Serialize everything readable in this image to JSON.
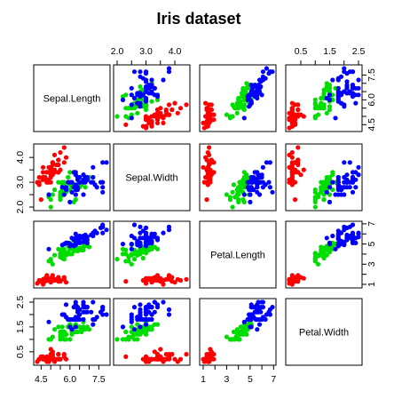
{
  "chart_data": {
    "type": "scatter",
    "title": "Iris dataset",
    "variables": [
      "Sepal.Length",
      "Sepal.Width",
      "Petal.Length",
      "Petal.Width"
    ],
    "ranges": {
      "Sepal.Length": [
        4.3,
        7.9
      ],
      "Sepal.Width": [
        2.0,
        4.4
      ],
      "Petal.Length": [
        1.0,
        6.9
      ],
      "Petal.Width": [
        0.1,
        2.5
      ]
    },
    "tick_labels": {
      "Sepal.Length": [
        "4.5",
        "6.0",
        "7.5"
      ],
      "Sepal.Width": [
        "2.0",
        "3.0",
        "4.0"
      ],
      "Petal.Length": [
        "1",
        "3",
        "5",
        "7"
      ],
      "Petal.Width": [
        "0.5",
        "1.5",
        "2.5"
      ]
    },
    "tick_values": {
      "Sepal.Length": [
        4.5,
        5.0,
        5.5,
        6.0,
        6.5,
        7.0,
        7.5
      ],
      "Sepal.Width": [
        2.0,
        2.5,
        3.0,
        3.5,
        4.0
      ],
      "Petal.Length": [
        1,
        2,
        3,
        4,
        5,
        6,
        7
      ],
      "Petal.Width": [
        0.5,
        1.0,
        1.5,
        2.0,
        2.5
      ]
    },
    "grid": false,
    "series": [
      {
        "color": "#ff0000",
        "points": [
          [
            5.1,
            3.5,
            1.4,
            0.2
          ],
          [
            4.9,
            3.0,
            1.4,
            0.2
          ],
          [
            4.7,
            3.2,
            1.3,
            0.2
          ],
          [
            4.6,
            3.1,
            1.5,
            0.2
          ],
          [
            5.0,
            3.6,
            1.4,
            0.2
          ],
          [
            5.4,
            3.9,
            1.7,
            0.4
          ],
          [
            4.6,
            3.4,
            1.4,
            0.3
          ],
          [
            5.0,
            3.4,
            1.5,
            0.2
          ],
          [
            4.4,
            2.9,
            1.4,
            0.2
          ],
          [
            4.9,
            3.1,
            1.5,
            0.1
          ],
          [
            5.4,
            3.7,
            1.5,
            0.2
          ],
          [
            4.8,
            3.4,
            1.6,
            0.2
          ],
          [
            4.8,
            3.0,
            1.4,
            0.1
          ],
          [
            4.3,
            3.0,
            1.1,
            0.1
          ],
          [
            5.8,
            4.0,
            1.2,
            0.2
          ],
          [
            5.7,
            4.4,
            1.5,
            0.4
          ],
          [
            5.4,
            3.9,
            1.3,
            0.4
          ],
          [
            5.1,
            3.5,
            1.4,
            0.3
          ],
          [
            5.7,
            3.8,
            1.7,
            0.3
          ],
          [
            5.1,
            3.8,
            1.5,
            0.3
          ],
          [
            5.4,
            3.4,
            1.7,
            0.2
          ],
          [
            5.1,
            3.7,
            1.5,
            0.4
          ],
          [
            4.6,
            3.6,
            1.0,
            0.2
          ],
          [
            5.1,
            3.3,
            1.7,
            0.5
          ],
          [
            4.8,
            3.4,
            1.9,
            0.2
          ],
          [
            5.0,
            3.0,
            1.6,
            0.2
          ],
          [
            5.0,
            3.4,
            1.6,
            0.4
          ],
          [
            5.2,
            3.5,
            1.5,
            0.2
          ],
          [
            5.2,
            3.4,
            1.4,
            0.2
          ],
          [
            4.7,
            3.2,
            1.6,
            0.2
          ],
          [
            4.8,
            3.1,
            1.6,
            0.2
          ],
          [
            5.4,
            3.4,
            1.5,
            0.4
          ],
          [
            5.2,
            4.1,
            1.5,
            0.1
          ],
          [
            5.5,
            4.2,
            1.4,
            0.2
          ],
          [
            4.9,
            3.1,
            1.5,
            0.2
          ],
          [
            5.0,
            3.2,
            1.2,
            0.2
          ],
          [
            5.5,
            3.5,
            1.3,
            0.2
          ],
          [
            4.9,
            3.6,
            1.4,
            0.1
          ],
          [
            4.4,
            3.0,
            1.3,
            0.2
          ],
          [
            5.1,
            3.4,
            1.5,
            0.2
          ],
          [
            5.0,
            3.5,
            1.3,
            0.3
          ],
          [
            4.5,
            2.3,
            1.3,
            0.3
          ],
          [
            4.4,
            3.2,
            1.3,
            0.2
          ],
          [
            5.0,
            3.5,
            1.6,
            0.6
          ],
          [
            5.1,
            3.8,
            1.9,
            0.4
          ],
          [
            4.8,
            3.0,
            1.4,
            0.3
          ],
          [
            5.1,
            3.8,
            1.6,
            0.2
          ],
          [
            4.6,
            3.2,
            1.4,
            0.2
          ],
          [
            5.3,
            3.7,
            1.5,
            0.2
          ],
          [
            5.0,
            3.3,
            1.4,
            0.2
          ]
        ]
      },
      {
        "color": "#00dd00",
        "points": [
          [
            7.0,
            3.2,
            4.7,
            1.4
          ],
          [
            6.4,
            3.2,
            4.5,
            1.5
          ],
          [
            6.9,
            3.1,
            4.9,
            1.5
          ],
          [
            5.5,
            2.3,
            4.0,
            1.3
          ],
          [
            6.5,
            2.8,
            4.6,
            1.5
          ],
          [
            5.7,
            2.8,
            4.5,
            1.3
          ],
          [
            6.3,
            3.3,
            4.7,
            1.6
          ],
          [
            4.9,
            2.4,
            3.3,
            1.0
          ],
          [
            6.6,
            2.9,
            4.6,
            1.3
          ],
          [
            5.2,
            2.7,
            3.9,
            1.4
          ],
          [
            5.0,
            2.0,
            3.5,
            1.0
          ],
          [
            5.9,
            3.0,
            4.2,
            1.5
          ],
          [
            6.0,
            2.2,
            4.0,
            1.0
          ],
          [
            6.1,
            2.9,
            4.7,
            1.4
          ],
          [
            5.6,
            2.9,
            3.6,
            1.3
          ],
          [
            6.7,
            3.1,
            4.4,
            1.4
          ],
          [
            5.6,
            3.0,
            4.5,
            1.5
          ],
          [
            5.8,
            2.7,
            4.1,
            1.0
          ],
          [
            6.2,
            2.2,
            4.5,
            1.5
          ],
          [
            5.6,
            2.5,
            3.9,
            1.1
          ],
          [
            5.9,
            3.2,
            4.8,
            1.8
          ],
          [
            6.1,
            2.8,
            4.0,
            1.3
          ],
          [
            6.3,
            2.5,
            4.9,
            1.5
          ],
          [
            6.1,
            2.8,
            4.7,
            1.2
          ],
          [
            6.4,
            2.9,
            4.3,
            1.3
          ],
          [
            6.6,
            3.0,
            4.4,
            1.4
          ],
          [
            6.8,
            2.8,
            4.8,
            1.4
          ],
          [
            6.7,
            3.0,
            5.0,
            1.7
          ],
          [
            6.0,
            2.9,
            4.5,
            1.5
          ],
          [
            5.7,
            2.6,
            3.5,
            1.0
          ],
          [
            5.5,
            2.4,
            3.8,
            1.1
          ],
          [
            5.5,
            2.4,
            3.7,
            1.0
          ],
          [
            5.8,
            2.7,
            3.9,
            1.2
          ],
          [
            6.0,
            2.7,
            5.1,
            1.6
          ],
          [
            5.4,
            3.0,
            4.5,
            1.5
          ],
          [
            6.0,
            3.4,
            4.5,
            1.6
          ],
          [
            6.7,
            3.1,
            4.7,
            1.5
          ],
          [
            6.3,
            2.3,
            4.4,
            1.3
          ],
          [
            5.6,
            3.0,
            4.1,
            1.3
          ],
          [
            5.5,
            2.5,
            4.0,
            1.3
          ],
          [
            5.5,
            2.6,
            4.4,
            1.2
          ],
          [
            6.1,
            3.0,
            4.6,
            1.4
          ],
          [
            5.8,
            2.6,
            4.0,
            1.2
          ],
          [
            5.0,
            2.3,
            3.3,
            1.0
          ],
          [
            5.6,
            2.7,
            4.2,
            1.3
          ],
          [
            5.7,
            3.0,
            4.2,
            1.2
          ],
          [
            5.7,
            2.9,
            4.2,
            1.3
          ],
          [
            6.2,
            2.9,
            4.3,
            1.3
          ],
          [
            5.1,
            2.5,
            3.0,
            1.1
          ],
          [
            5.7,
            2.8,
            4.1,
            1.3
          ]
        ]
      },
      {
        "color": "#0000ff",
        "points": [
          [
            6.3,
            3.3,
            6.0,
            2.5
          ],
          [
            5.8,
            2.7,
            5.1,
            1.9
          ],
          [
            7.1,
            3.0,
            5.9,
            2.1
          ],
          [
            6.3,
            2.9,
            5.6,
            1.8
          ],
          [
            6.5,
            3.0,
            5.8,
            2.2
          ],
          [
            7.6,
            3.0,
            6.6,
            2.1
          ],
          [
            4.9,
            2.5,
            4.5,
            1.7
          ],
          [
            7.3,
            2.9,
            6.3,
            1.8
          ],
          [
            6.7,
            2.5,
            5.8,
            1.8
          ],
          [
            7.2,
            3.6,
            6.1,
            2.5
          ],
          [
            6.5,
            3.2,
            5.1,
            2.0
          ],
          [
            6.4,
            2.7,
            5.3,
            1.9
          ],
          [
            6.8,
            3.0,
            5.5,
            2.1
          ],
          [
            5.7,
            2.5,
            5.0,
            2.0
          ],
          [
            5.8,
            2.8,
            5.1,
            2.4
          ],
          [
            6.4,
            3.2,
            5.3,
            2.3
          ],
          [
            6.5,
            3.0,
            5.5,
            1.8
          ],
          [
            7.7,
            3.8,
            6.7,
            2.2
          ],
          [
            7.7,
            2.6,
            6.9,
            2.3
          ],
          [
            6.0,
            2.2,
            5.0,
            1.5
          ],
          [
            6.9,
            3.2,
            5.7,
            2.3
          ],
          [
            5.6,
            2.8,
            4.9,
            2.0
          ],
          [
            7.7,
            2.8,
            6.7,
            2.0
          ],
          [
            6.3,
            2.7,
            4.9,
            1.8
          ],
          [
            6.7,
            3.3,
            5.7,
            2.1
          ],
          [
            7.2,
            3.2,
            6.0,
            1.8
          ],
          [
            6.2,
            2.8,
            4.8,
            1.8
          ],
          [
            6.1,
            3.0,
            4.9,
            1.8
          ],
          [
            6.4,
            2.8,
            5.6,
            2.1
          ],
          [
            7.2,
            3.0,
            5.8,
            1.6
          ],
          [
            7.4,
            2.8,
            6.1,
            1.9
          ],
          [
            7.9,
            3.8,
            6.4,
            2.0
          ],
          [
            6.4,
            2.8,
            5.6,
            2.2
          ],
          [
            6.3,
            2.8,
            5.1,
            1.5
          ],
          [
            6.1,
            2.6,
            5.6,
            1.4
          ],
          [
            7.7,
            3.0,
            6.1,
            2.3
          ],
          [
            6.3,
            3.4,
            5.6,
            2.4
          ],
          [
            6.4,
            3.1,
            5.5,
            1.8
          ],
          [
            6.0,
            3.0,
            4.8,
            1.8
          ],
          [
            6.9,
            3.1,
            5.4,
            2.1
          ],
          [
            6.7,
            3.1,
            5.6,
            2.4
          ],
          [
            6.9,
            3.1,
            5.1,
            2.3
          ],
          [
            5.8,
            2.7,
            5.1,
            1.9
          ],
          [
            6.8,
            3.2,
            5.9,
            2.3
          ],
          [
            6.7,
            3.3,
            5.7,
            2.5
          ],
          [
            6.7,
            3.0,
            5.2,
            2.3
          ],
          [
            6.3,
            2.5,
            5.0,
            1.9
          ],
          [
            6.5,
            3.0,
            5.2,
            2.0
          ],
          [
            6.2,
            3.4,
            5.4,
            2.3
          ],
          [
            5.9,
            3.0,
            5.1,
            1.8
          ]
        ]
      }
    ]
  }
}
